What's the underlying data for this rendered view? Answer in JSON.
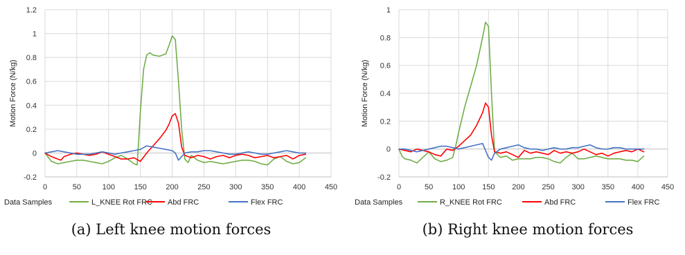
{
  "chart_data": [
    {
      "type": "line",
      "title": "",
      "xlabel": "Data Samples",
      "ylabel": "Motion Force (N/kg)",
      "xlim": [
        0,
        450
      ],
      "ylim": [
        -0.2,
        1.2
      ],
      "xticks": [
        0,
        50,
        100,
        150,
        200,
        250,
        300,
        350,
        400,
        450
      ],
      "yticks": [
        -0.2,
        0,
        0.2,
        0.4,
        0.6,
        0.8,
        1,
        1.2
      ],
      "yticks_labels": [
        "-0.2",
        "0",
        "0.2",
        "0.4",
        "0.6",
        "0.8",
        "1",
        "1.2"
      ],
      "grid": true,
      "legend": "bottom",
      "caption": "(a) Left knee motion forces",
      "series": [
        {
          "name": "L_KNEE Rot FRC",
          "color": "#70AD47",
          "x": [
            0,
            10,
            20,
            30,
            40,
            50,
            60,
            70,
            80,
            90,
            100,
            110,
            120,
            130,
            140,
            145,
            150,
            155,
            160,
            165,
            170,
            180,
            190,
            195,
            200,
            205,
            210,
            215,
            220,
            225,
            230,
            240,
            250,
            260,
            270,
            280,
            290,
            300,
            310,
            320,
            330,
            340,
            350,
            360,
            370,
            380,
            390,
            400,
            410
          ],
          "y": [
            0,
            -0.07,
            -0.09,
            -0.08,
            -0.07,
            -0.06,
            -0.06,
            -0.07,
            -0.08,
            -0.09,
            -0.07,
            -0.04,
            -0.02,
            -0.05,
            -0.09,
            -0.1,
            0.35,
            0.7,
            0.82,
            0.84,
            0.82,
            0.81,
            0.83,
            0.9,
            0.98,
            0.95,
            0.6,
            0.2,
            -0.05,
            -0.08,
            -0.02,
            -0.06,
            -0.08,
            -0.07,
            -0.08,
            -0.09,
            -0.08,
            -0.07,
            -0.06,
            -0.06,
            -0.07,
            -0.09,
            -0.1,
            -0.05,
            -0.03,
            -0.07,
            -0.09,
            -0.08,
            -0.04
          ]
        },
        {
          "name": "Abd FRC",
          "color": "#FF0000",
          "x": [
            0,
            10,
            20,
            25,
            30,
            40,
            50,
            60,
            70,
            80,
            90,
            100,
            110,
            120,
            130,
            140,
            150,
            160,
            170,
            180,
            190,
            195,
            200,
            205,
            210,
            215,
            220,
            230,
            240,
            250,
            260,
            270,
            280,
            290,
            300,
            310,
            320,
            330,
            340,
            350,
            360,
            370,
            380,
            390,
            400,
            410
          ],
          "y": [
            0,
            -0.03,
            -0.05,
            -0.06,
            -0.03,
            -0.01,
            0,
            -0.01,
            -0.02,
            -0.01,
            0.01,
            -0.01,
            -0.03,
            -0.05,
            -0.05,
            -0.04,
            -0.07,
            0,
            0.06,
            0.12,
            0.19,
            0.24,
            0.31,
            0.33,
            0.25,
            0.05,
            -0.02,
            -0.04,
            -0.02,
            -0.03,
            -0.05,
            -0.03,
            -0.02,
            -0.04,
            -0.02,
            -0.01,
            -0.02,
            -0.04,
            -0.03,
            -0.02,
            -0.04,
            -0.03,
            -0.02,
            -0.05,
            -0.02,
            -0.01
          ]
        },
        {
          "name": "Flex FRC",
          "color": "#4472C4",
          "x": [
            0,
            10,
            20,
            30,
            40,
            50,
            60,
            70,
            80,
            90,
            100,
            110,
            120,
            130,
            140,
            150,
            160,
            170,
            180,
            190,
            200,
            205,
            210,
            215,
            220,
            230,
            240,
            250,
            260,
            270,
            280,
            290,
            300,
            310,
            320,
            330,
            340,
            350,
            360,
            370,
            380,
            390,
            400,
            410
          ],
          "y": [
            0,
            0.01,
            0.02,
            0.01,
            0,
            -0.01,
            -0.01,
            -0.01,
            0,
            0.01,
            0,
            -0.01,
            0,
            0.01,
            0.02,
            0.03,
            0.06,
            0.05,
            0.04,
            0.03,
            0.02,
            0,
            -0.06,
            -0.03,
            0,
            0.01,
            0.01,
            0.02,
            0.02,
            0.01,
            0,
            -0.01,
            -0.01,
            0,
            0.01,
            0,
            -0.01,
            -0.01,
            0,
            0.01,
            0.02,
            0.01,
            0,
            0
          ]
        }
      ]
    },
    {
      "type": "line",
      "title": "",
      "xlabel": "Data Samples",
      "ylabel": "Motion Force (N/kg)",
      "xlim": [
        0,
        450
      ],
      "ylim": [
        -0.2,
        1
      ],
      "xticks": [
        0,
        50,
        100,
        150,
        200,
        250,
        300,
        350,
        400,
        450
      ],
      "yticks": [
        -0.2,
        0,
        0.2,
        0.4,
        0.6,
        0.8,
        1
      ],
      "yticks_labels": [
        "-0.2",
        "0",
        "0.2",
        "0.4",
        "0.6",
        "0.8",
        "1"
      ],
      "grid": true,
      "legend": "bottom",
      "caption": "(b) Right knee motion forces",
      "series": [
        {
          "name": "R_KNEE Rot FRC",
          "color": "#70AD47",
          "x": [
            0,
            5,
            10,
            20,
            30,
            40,
            50,
            60,
            70,
            80,
            90,
            95,
            100,
            110,
            120,
            130,
            140,
            145,
            150,
            155,
            160,
            170,
            180,
            190,
            200,
            210,
            220,
            230,
            240,
            250,
            260,
            270,
            280,
            290,
            300,
            310,
            320,
            330,
            340,
            350,
            360,
            370,
            380,
            390,
            400,
            410
          ],
          "y": [
            0,
            -0.05,
            -0.07,
            -0.08,
            -0.1,
            -0.06,
            -0.02,
            -0.07,
            -0.09,
            -0.08,
            -0.06,
            0.02,
            0.12,
            0.3,
            0.45,
            0.6,
            0.8,
            0.91,
            0.88,
            0.4,
            -0.02,
            -0.06,
            -0.05,
            -0.08,
            -0.07,
            -0.07,
            -0.07,
            -0.06,
            -0.06,
            -0.07,
            -0.09,
            -0.1,
            -0.06,
            -0.03,
            -0.07,
            -0.07,
            -0.06,
            -0.05,
            -0.06,
            -0.07,
            -0.07,
            -0.07,
            -0.08,
            -0.08,
            -0.09,
            -0.05
          ]
        },
        {
          "name": "Abd FRC",
          "color": "#FF0000",
          "x": [
            0,
            10,
            20,
            30,
            40,
            50,
            60,
            70,
            80,
            90,
            100,
            110,
            120,
            130,
            140,
            145,
            150,
            155,
            160,
            170,
            180,
            190,
            200,
            210,
            220,
            230,
            240,
            250,
            260,
            270,
            280,
            290,
            300,
            310,
            320,
            330,
            340,
            350,
            360,
            370,
            380,
            390,
            400,
            410
          ],
          "y": [
            0,
            -0.01,
            -0.02,
            0,
            -0.01,
            -0.02,
            -0.04,
            -0.05,
            0,
            -0.01,
            0.02,
            0.06,
            0.1,
            0.17,
            0.26,
            0.33,
            0.3,
            0.1,
            -0.02,
            -0.03,
            -0.02,
            -0.04,
            -0.06,
            -0.01,
            -0.03,
            -0.02,
            -0.03,
            -0.04,
            -0.01,
            -0.03,
            -0.02,
            -0.03,
            -0.02,
            0,
            -0.02,
            -0.04,
            -0.03,
            -0.05,
            -0.03,
            -0.02,
            -0.01,
            -0.02,
            0,
            -0.02
          ]
        },
        {
          "name": "Flex FRC",
          "color": "#4472C4",
          "x": [
            0,
            10,
            20,
            30,
            40,
            50,
            60,
            70,
            80,
            90,
            100,
            110,
            120,
            130,
            140,
            150,
            155,
            160,
            170,
            180,
            190,
            200,
            210,
            220,
            230,
            240,
            250,
            260,
            270,
            280,
            290,
            300,
            310,
            320,
            330,
            340,
            350,
            360,
            370,
            380,
            390,
            400,
            410
          ],
          "y": [
            0,
            0,
            -0.01,
            -0.02,
            -0.01,
            0,
            0.01,
            0.02,
            0.02,
            0.01,
            0,
            0.01,
            0.02,
            0.03,
            0.04,
            -0.06,
            -0.08,
            -0.03,
            0,
            0.01,
            0.02,
            0.03,
            0.01,
            0,
            0,
            -0.01,
            0,
            0.01,
            0,
            0,
            0.01,
            0.01,
            0.02,
            0.03,
            0.01,
            0,
            0,
            0.01,
            0.01,
            0,
            0,
            0,
            0
          ]
        }
      ]
    }
  ]
}
